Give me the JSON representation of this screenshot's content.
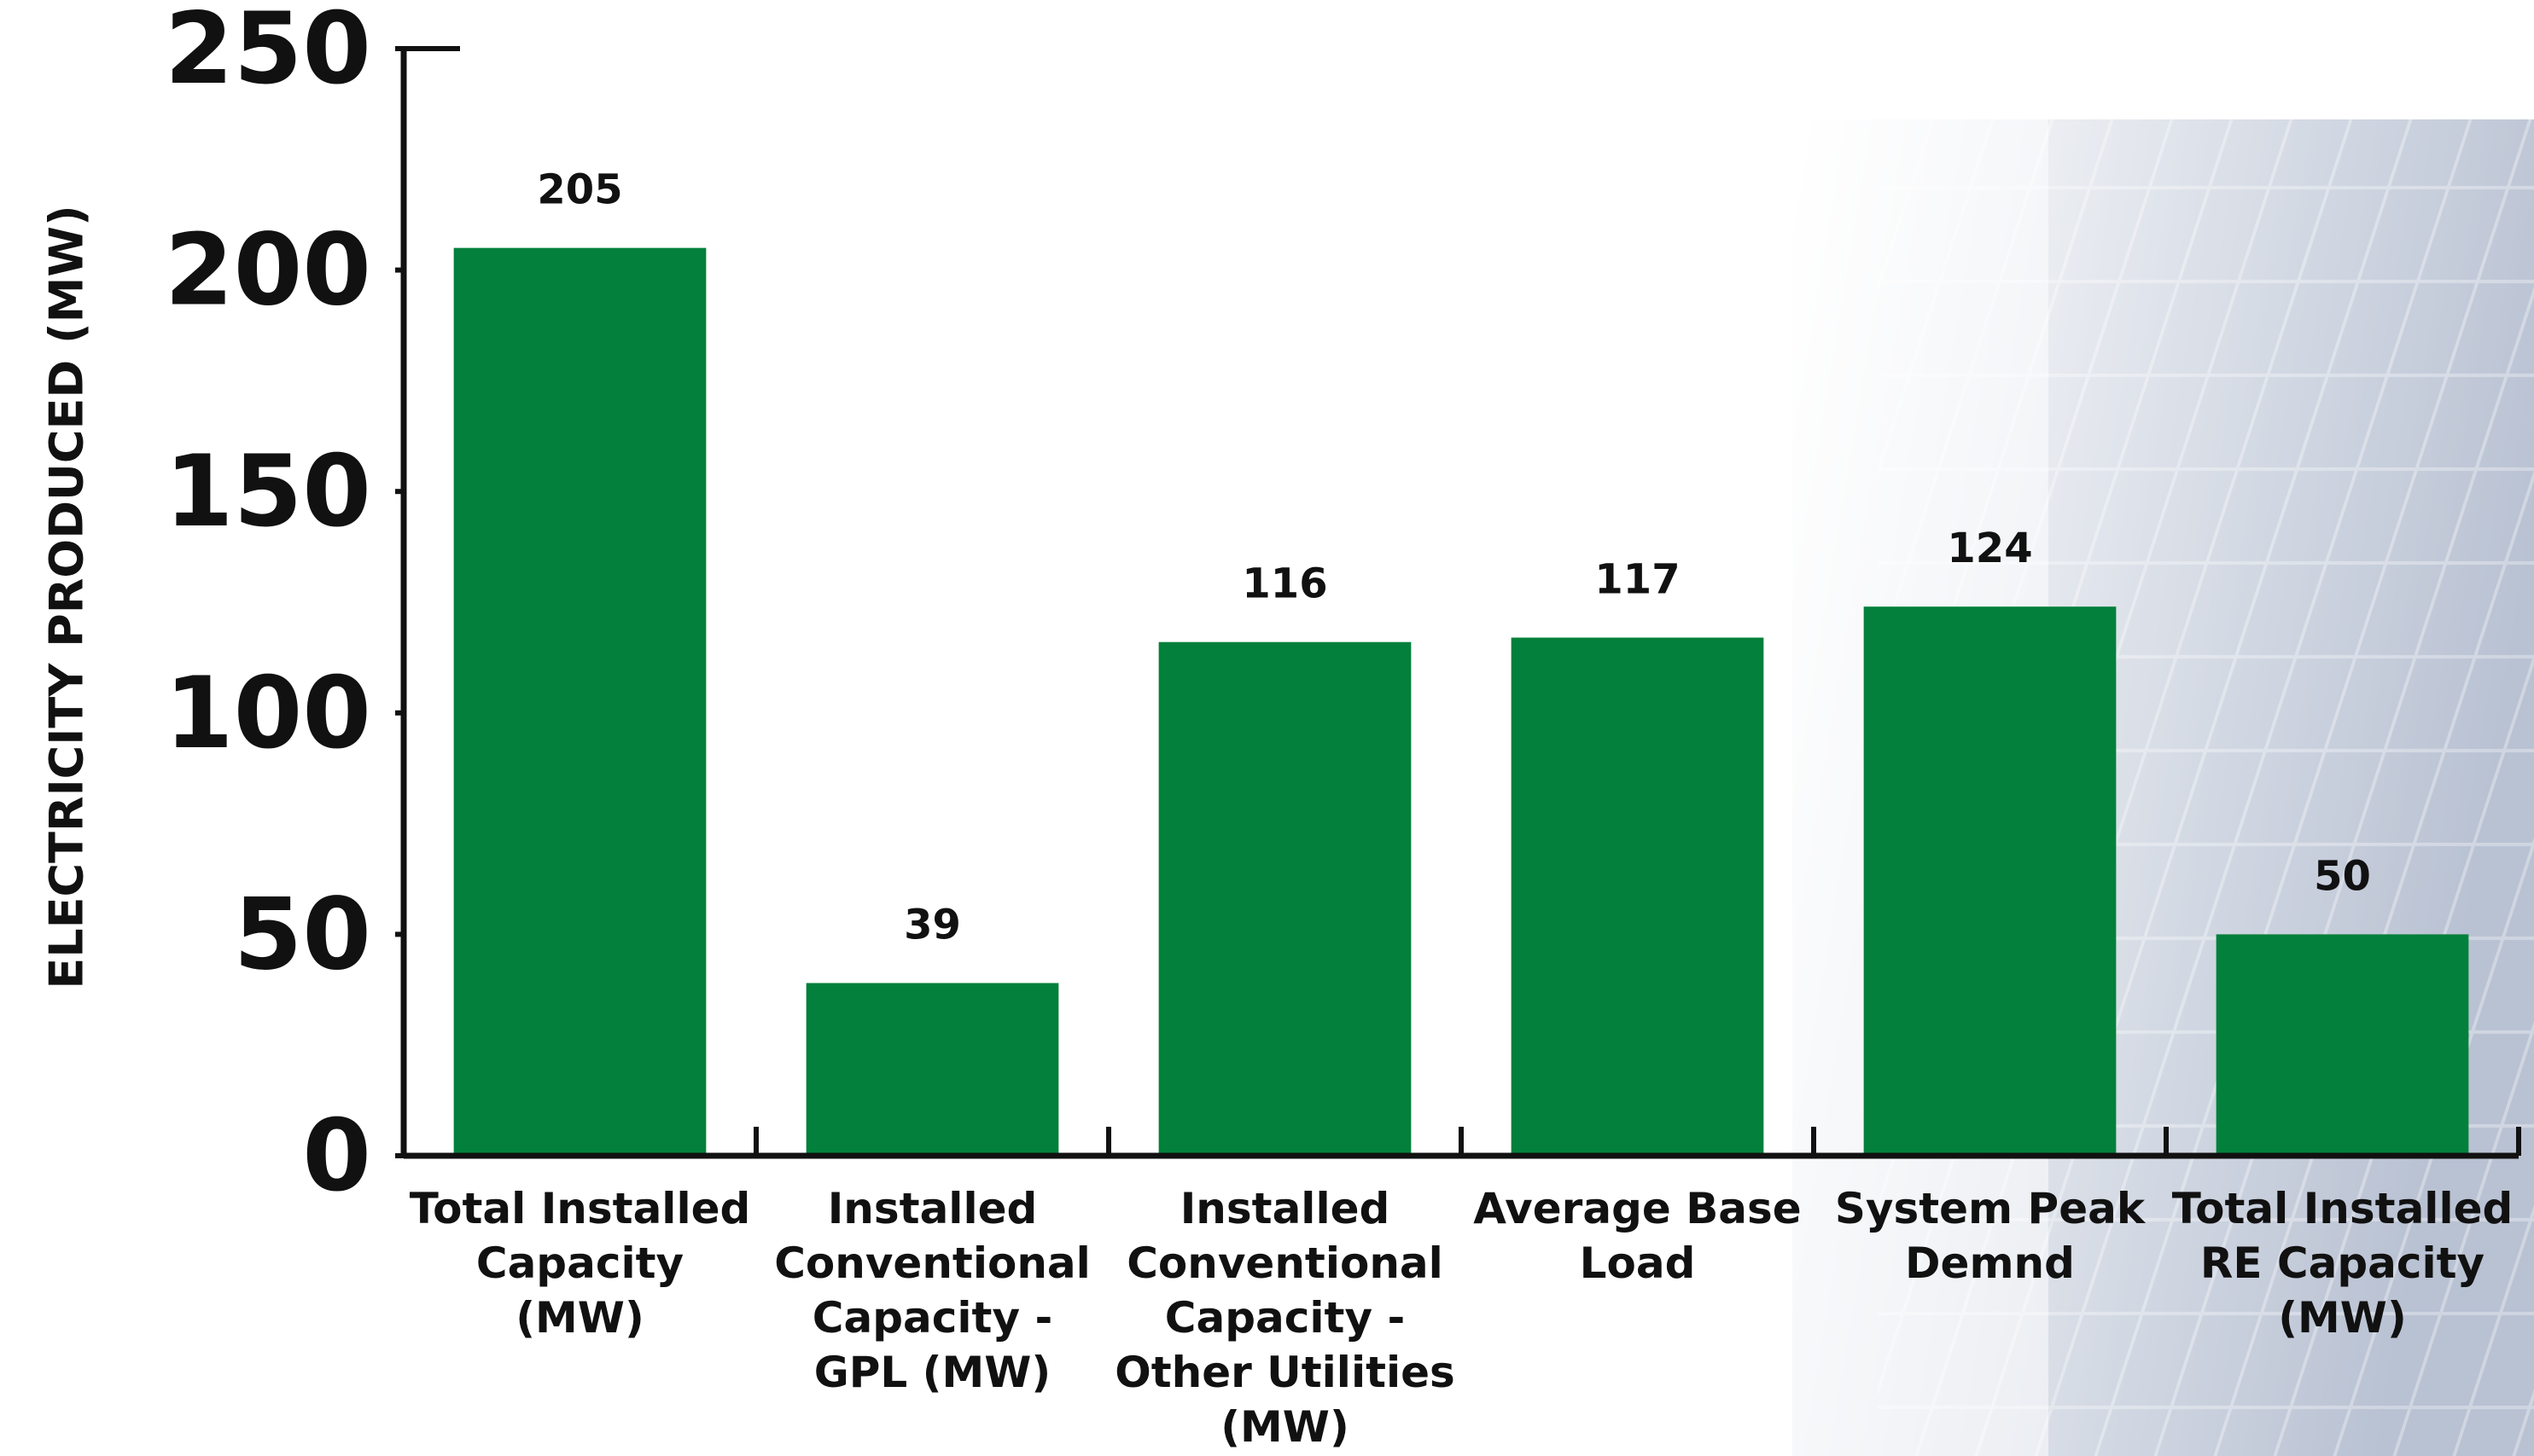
{
  "chart_data": {
    "type": "bar",
    "y_label": "ELECTRICITY PRODUCED (MW)",
    "categories": [
      "Total Installed Capacity (MW)",
      "Installed Conventional Capacity - GPL (MW)",
      "Installed Conventional Capacity - Other Utilities (MW)",
      "Average Base Load",
      "System Peak Demnd",
      "Total Installed RE Capacity (MW)"
    ],
    "values": [
      205,
      39,
      116,
      117,
      124,
      50
    ],
    "color": "#03803b",
    "ylim": [
      0,
      250
    ],
    "yticks": [
      0,
      50,
      100,
      150,
      200,
      250
    ],
    "grid": false
  }
}
